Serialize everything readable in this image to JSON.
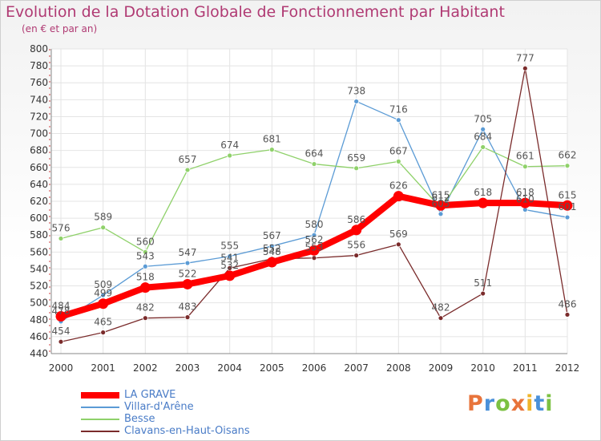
{
  "title": "Evolution de la Dotation Globale de Fonctionnement par Habitant",
  "subtitle": "(en € et par an)",
  "logo": {
    "text": "Proxiti",
    "colors": [
      "#e8743b",
      "#4a90d9",
      "#7cc142",
      "#e8743b",
      "#f0b429",
      "#4a90d9",
      "#7cc142"
    ]
  },
  "chart_data": {
    "type": "line",
    "title": "Evolution de la Dotation Globale de Fonctionnement par Habitant",
    "subtitle": "(en € et par an)",
    "x": [
      "2000",
      "2001",
      "2002",
      "2003",
      "2004",
      "2005",
      "2006",
      "2007",
      "2008",
      "2009",
      "2010",
      "2011",
      "2012"
    ],
    "ylim": [
      440,
      800
    ],
    "yticks": [
      440,
      460,
      480,
      500,
      520,
      540,
      560,
      580,
      600,
      620,
      640,
      660,
      680,
      700,
      720,
      740,
      760,
      780,
      800
    ],
    "grid": true,
    "legend_position": "bottom-left",
    "series": [
      {
        "name": "LA GRAVE",
        "color": "#ff0000",
        "values": [
          484,
          499,
          518,
          522,
          532,
          548,
          562,
          586,
          626,
          615,
          618,
          618,
          615
        ],
        "labels": [
          "484",
          "499",
          "518",
          "522",
          "532",
          "548",
          "562",
          "586",
          "626",
          "615",
          "618",
          "618",
          "615"
        ]
      },
      {
        "name": "Villar-d'Arêne",
        "color": "#5b9bd5",
        "values": [
          478,
          509,
          543,
          547,
          555,
          567,
          580,
          738,
          716,
          605,
          705,
          610,
          601
        ],
        "labels": [
          "478",
          "509",
          "543",
          "547",
          "555",
          "567",
          "580",
          "738",
          "716",
          "605",
          "705",
          "610",
          "601"
        ]
      },
      {
        "name": "Besse",
        "color": "#8fd16a",
        "values": [
          576,
          589,
          560,
          657,
          674,
          681,
          664,
          659,
          667,
          612,
          684,
          661,
          662
        ],
        "labels": [
          "576",
          "589",
          "560",
          "657",
          "674",
          "681",
          "664",
          "659",
          "667",
          "612",
          "684",
          "661",
          "662"
        ]
      },
      {
        "name": "Clavans-en-Haut-Oisans",
        "color": "#7a2b2b",
        "values": [
          454,
          465,
          482,
          483,
          541,
          552,
          553,
          556,
          569,
          482,
          511,
          777,
          486
        ],
        "labels": [
          "454",
          "465",
          "482",
          "483",
          "541",
          "552",
          "553",
          "556",
          "569",
          "482",
          "511",
          "777",
          "486"
        ]
      }
    ]
  }
}
